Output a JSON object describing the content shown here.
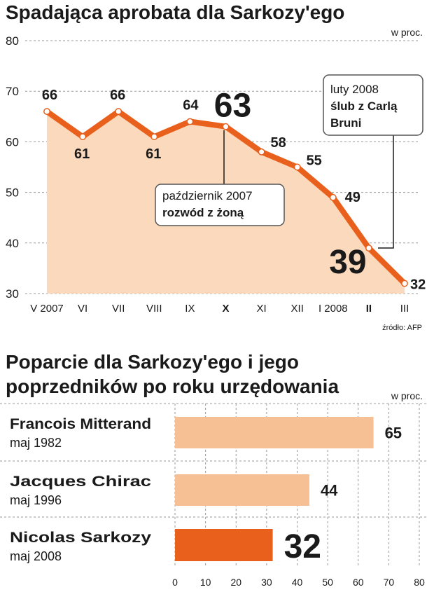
{
  "chart_data": [
    {
      "type": "line",
      "title": "Spadająca aprobata dla Sarkozy'ego",
      "unit_label": "w proc.",
      "categories": [
        "V 2007",
        "VI",
        "VII",
        "VIII",
        "IX",
        "X",
        "XI",
        "XII",
        "I 2008",
        "II",
        "III"
      ],
      "bold_categories": [
        "X",
        "II"
      ],
      "values": [
        66,
        61,
        66,
        61,
        64,
        63,
        58,
        55,
        49,
        39,
        32
      ],
      "big_labels": [
        5,
        9
      ],
      "yticks": [
        30,
        40,
        50,
        60,
        70,
        80
      ],
      "ylim": [
        30,
        80
      ],
      "grid": true,
      "source": "źródło: AFP",
      "colors": {
        "line": "#e8601c",
        "area": "#fbd9bd",
        "marker": "#ffffff"
      },
      "annotations": [
        {
          "line1": "październik 2007",
          "line2": "rozwód z żoną",
          "point_index": 5
        },
        {
          "line1": "luty 2008",
          "line2": "ślub z Carlą",
          "line3": "Bruni",
          "point_index": 9
        }
      ]
    },
    {
      "type": "bar",
      "orientation": "horizontal",
      "title_line1": "Poparcie dla Sarkozy'ego i jego",
      "title_line2": "poprzedników po roku urzędowania",
      "unit_label": "w proc.",
      "bars": [
        {
          "name": "Francois Mitterand",
          "date": "maj 1982",
          "value": 65
        },
        {
          "name": "Jacques Chirac",
          "date": "maj 1996",
          "value": 44
        },
        {
          "name": "Nicolas Sarkozy",
          "date": "maj 2008",
          "value": 32,
          "highlight": true
        }
      ],
      "xticks": [
        0,
        10,
        20,
        30,
        40,
        50,
        60,
        70,
        80
      ],
      "xlim": [
        0,
        80
      ],
      "colors": {
        "bar": "#f6c094",
        "highlight": "#e8601c"
      }
    }
  ]
}
